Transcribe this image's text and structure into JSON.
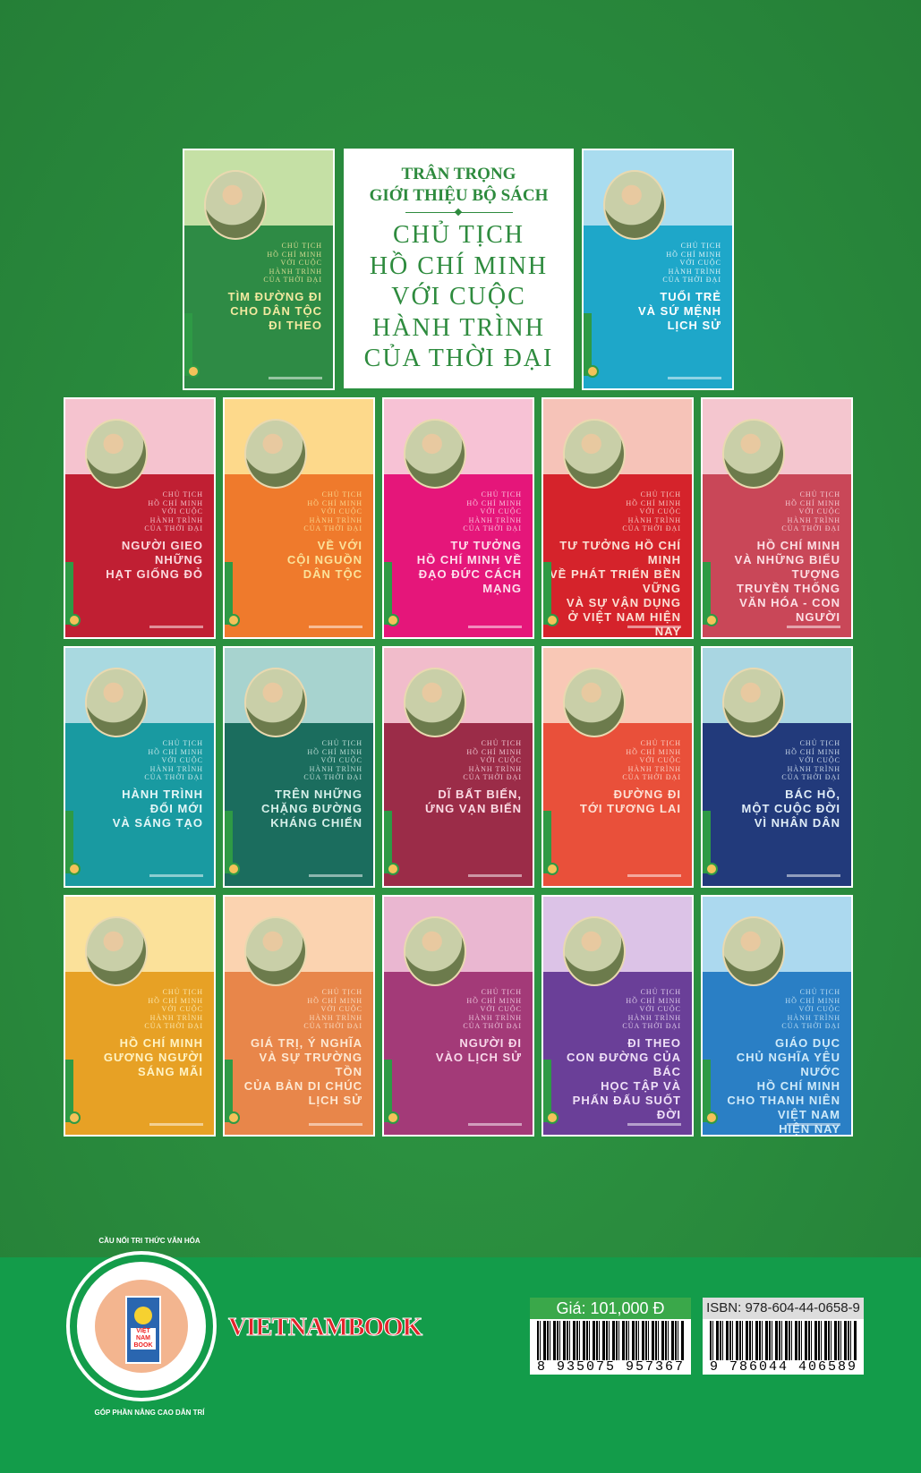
{
  "intro": {
    "pre": "TRÂN TRỌNG\nGIỚI THIỆU BỘ SÁCH",
    "title": "CHỦ TỊCH\nHỒ CHÍ MINH\nVỚI CUỘC\nHÀNH TRÌNH\nCỦA THỜI ĐẠI"
  },
  "series_label": "CHỦ TỊCH\nHỒ CHÍ MINH\nVỚI CUỘC\nHÀNH TRÌNH\nCỦA THỜI ĐẠI",
  "books": [
    {
      "title": "TÌM ĐƯỜNG ĐI\nCHO DÂN TỘC\nĐI THEO",
      "color": "#2e8b45",
      "top": "#c5e0a5",
      "text": "#f3e9a0"
    },
    {
      "title": "TUỔI TRẺ\nVÀ SỨ MỆNH\nLỊCH SỬ",
      "color": "#1ea7c9",
      "top": "#a9dcef",
      "text": "#ffffff"
    },
    {
      "title": "NGƯỜI GIEO\nNHỮNG\nHẠT GIỐNG ĐỎ",
      "color": "#c01f33",
      "top": "#f5c3cf",
      "text": "#fbd9de"
    },
    {
      "title": "VỀ VỚI\nCỘI NGUỒN\nDÂN TỘC",
      "color": "#ef7a2c",
      "top": "#fdd98b",
      "text": "#fbe29a"
    },
    {
      "title": "TƯ TƯỞNG\nHỒ CHÍ MINH VỀ\nĐẠO ĐỨC CÁCH MẠNG",
      "color": "#e5167a",
      "top": "#f7c2d5",
      "text": "#fde0ec"
    },
    {
      "title": "TƯ TƯỞNG HỒ CHÍ MINH\nVỀ PHÁT TRIỂN BỀN VỮNG\nVÀ SỰ VẬN DỤNG\nỞ VIỆT NAM HIỆN NAY",
      "color": "#d5232b",
      "top": "#f6c3b8",
      "text": "#fbe0d5"
    },
    {
      "title": "HỒ CHÍ MINH\nVÀ NHỮNG BIỂU TƯỢNG\nTRUYỀN THỐNG\nVĂN HÓA - CON NGƯỜI",
      "color": "#c94758",
      "top": "#f4c6cf",
      "text": "#fcdfe4"
    },
    {
      "title": "HÀNH TRÌNH\nĐỔI MỚI\nVÀ SÁNG TẠO",
      "color": "#199aa1",
      "top": "#a9d9e0",
      "text": "#e4f6f7"
    },
    {
      "title": "TRÊN NHỮNG\nCHẶNG ĐƯỜNG\nKHÁNG CHIẾN",
      "color": "#1b6d5e",
      "top": "#a7d3cf",
      "text": "#d6efe9"
    },
    {
      "title": "DĨ BẤT BIẾN,\nỨNG VẠN BIẾN",
      "color": "#9b2c48",
      "top": "#f1bccb",
      "text": "#fbdbe4"
    },
    {
      "title": "ĐƯỜNG ĐI\nTỚI TƯƠNG LAI",
      "color": "#e9503a",
      "top": "#f9c8b6",
      "text": "#fde2d6"
    },
    {
      "title": "BÁC HỒ,\nMỘT CUỘC ĐỜI\nVÌ NHÂN DÂN",
      "color": "#223a7b",
      "top": "#a9d6e2",
      "text": "#e1eef8"
    },
    {
      "title": "HỒ CHÍ MINH\nGƯƠNG NGƯỜI\nSÁNG MÃI",
      "color": "#e7a125",
      "top": "#fbe19a",
      "text": "#fff3c4"
    },
    {
      "title": "GIÁ TRỊ, Ý NGHĨA\nVÀ SỰ TRƯỜNG TỒN\nCỦA BẢN DI CHÚC\nLỊCH SỬ",
      "color": "#e8864a",
      "top": "#fbd3b0",
      "text": "#fde8d2"
    },
    {
      "title": "NGƯỜI ĐI\nVÀO LỊCH SỬ",
      "color": "#a33a78",
      "top": "#eab7d1",
      "text": "#f8d8ea"
    },
    {
      "title": "ĐI THEO\nCON ĐƯỜNG CỦA BÁC\nHỌC TẬP VÀ\nPHẤN ĐẤU SUỐT ĐỜI",
      "color": "#6a3f98",
      "top": "#dcc3e7",
      "text": "#efe0f7"
    },
    {
      "title": "GIÁO DỤC\nCHỦ NGHĨA YÊU NƯỚC\nHỒ CHÍ MINH\nCHO THANH NIÊN VIỆT NAM\nHIỆN NAY",
      "color": "#2a7fc5",
      "top": "#acd9ef",
      "text": "#cfeaf9"
    }
  ],
  "publisher": {
    "brand": "VIETNAMBOOK",
    "seal_top": "CẦU NỐI TRI THỨC VĂN HÓA",
    "seal_bottom": "GÓP PHẦN NÂNG CAO DÂN TRÍ",
    "seal_center": "VIỆT NAM BOOK"
  },
  "price": {
    "label": "Giá: 101,000 Đ",
    "barcode": "8 935075 957367",
    "color": "#3aa84a"
  },
  "isbn": {
    "label": "ISBN: 978-604-44-0658-9",
    "barcode": "9 786044 406589"
  }
}
